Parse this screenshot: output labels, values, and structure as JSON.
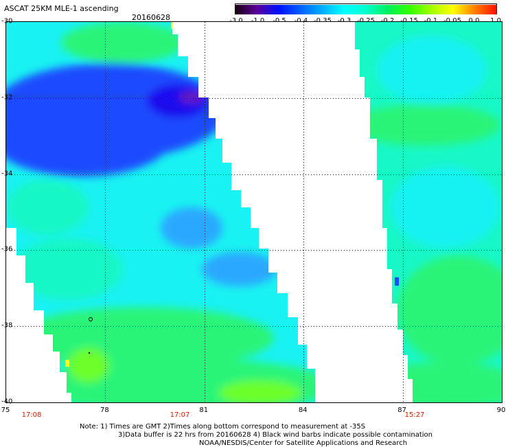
{
  "header": {
    "title": "ASCAT 25KM MLE-1 ascending",
    "date": "20160628"
  },
  "colorbar": {
    "labels": [
      "-3.0",
      "-1.0",
      "-0.5",
      "-0.4",
      "-0.35",
      "-0.3",
      "-0.25",
      "-0.2",
      "-0.15",
      "-0.1",
      "-0.05",
      "0.0",
      "1.0"
    ],
    "colors": [
      "#1a0010",
      "#5a009a",
      "#0010ff",
      "#0060ff",
      "#00b0ff",
      "#00ffff",
      "#00ffcc",
      "#00f060",
      "#30ff00",
      "#a0ff00",
      "#ffff00",
      "#ff8000",
      "#ff1000"
    ]
  },
  "map": {
    "lat_labels": [
      "-30",
      "-32",
      "-34",
      "-36",
      "-38",
      "-40"
    ],
    "lon_labels": [
      "75",
      "78",
      "81",
      "84",
      "87",
      "90"
    ],
    "pass_times": [
      "17:08",
      "17:07",
      "15:27"
    ],
    "palette": {
      "deep_blue": "#1e10ee",
      "blue": "#1a4cff",
      "light_blue": "#2aa8ff",
      "cyan": "#19f2f2",
      "aqua_green": "#18f7c6",
      "green": "#2cf478",
      "lime": "#6cff2a",
      "purple": "#6a1ac0",
      "yellow": "#ffff20"
    }
  },
  "notes": {
    "line1": "Note: 1) Times are GMT 2)Times along bottom correspond to measurement at -35S",
    "line2": "3)Data buffer is 22 hrs from 20160628 4) Black wind barbs indicate possible contamination",
    "line3": "NOAA/NESDIS/Center for Satellite Applications and Research"
  }
}
